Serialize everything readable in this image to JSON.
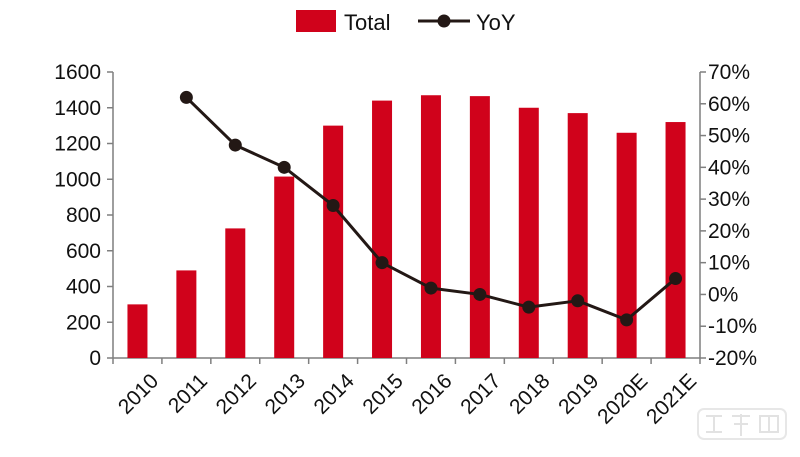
{
  "chart_data": {
    "type": "bar+line",
    "categories": [
      "2010",
      "2011",
      "2012",
      "2013",
      "2014",
      "2015",
      "2016",
      "2017",
      "2018",
      "2019",
      "2020E",
      "2021E"
    ],
    "series": [
      {
        "name": "Total",
        "type": "bar",
        "axis": "left",
        "color": "#d0021b",
        "values": [
          300,
          490,
          725,
          1015,
          1300,
          1440,
          1470,
          1465,
          1400,
          1370,
          1260,
          1320
        ]
      },
      {
        "name": "YoY",
        "type": "line",
        "axis": "right",
        "color": "#231815",
        "values": [
          null,
          0.62,
          0.47,
          0.4,
          0.28,
          0.1,
          0.02,
          0.0,
          -0.04,
          -0.02,
          -0.08,
          0.05
        ]
      }
    ],
    "y_left": {
      "range": [
        0,
        1600
      ],
      "ticks": [
        0,
        200,
        400,
        600,
        800,
        1000,
        1200,
        1400,
        1600
      ],
      "tick_labels": [
        "0",
        "200",
        "400",
        "600",
        "800",
        "1000",
        "1200",
        "1400",
        "1600"
      ]
    },
    "y_right": {
      "range": [
        -0.2,
        0.7
      ],
      "ticks": [
        -0.2,
        -0.1,
        0.0,
        0.1,
        0.2,
        0.3,
        0.4,
        0.5,
        0.6,
        0.7
      ],
      "tick_labels": [
        "-20%",
        "-10%",
        "0%",
        "10%",
        "20%",
        "30%",
        "40%",
        "50%",
        "60%",
        "70%"
      ]
    },
    "grid": false,
    "legend": "top-center"
  },
  "watermark": "智东西"
}
